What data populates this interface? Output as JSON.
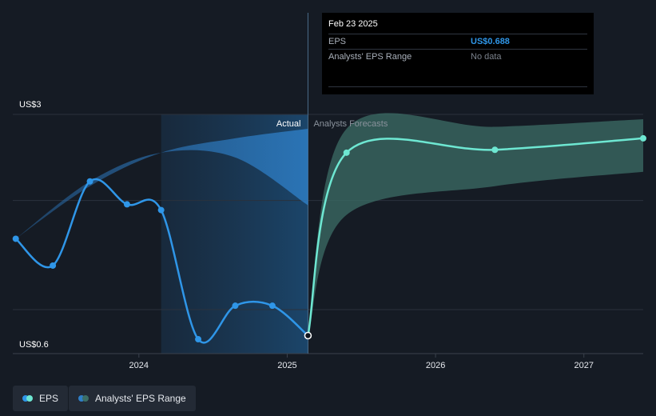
{
  "chart_data": {
    "type": "line",
    "y_axis": {
      "top_label": "US$3",
      "bottom_label": "US$0.6",
      "ylim": [
        0.6,
        3.0
      ]
    },
    "x_axis": {
      "ticks": [
        "2024",
        "2025",
        "2026",
        "2027"
      ],
      "xlim": [
        2023.15,
        2027.4
      ]
    },
    "series": [
      {
        "name": "EPS",
        "kind": "actual",
        "color": "#2f96e8",
        "points": [
          {
            "x": 2023.17,
            "y": 1.7
          },
          {
            "x": 2023.42,
            "y": 1.42
          },
          {
            "x": 2023.67,
            "y": 2.3
          },
          {
            "x": 2023.92,
            "y": 2.06
          },
          {
            "x": 2024.15,
            "y": 2.0
          },
          {
            "x": 2024.4,
            "y": 0.65
          },
          {
            "x": 2024.65,
            "y": 1.0
          },
          {
            "x": 2024.9,
            "y": 1.0
          },
          {
            "x": 2025.14,
            "y": 0.688
          }
        ]
      },
      {
        "name": "EPS",
        "kind": "forecast",
        "color": "#6ee7d2",
        "points": [
          {
            "x": 2025.14,
            "y": 0.688
          },
          {
            "x": 2025.4,
            "y": 2.6
          },
          {
            "x": 2026.4,
            "y": 2.63
          },
          {
            "x": 2027.4,
            "y": 2.75
          }
        ]
      }
    ],
    "ranges": [
      {
        "name": "Analysts' EPS Range",
        "kind": "past",
        "color": "#2f7fc8",
        "upper": [
          [
            2023.17,
            1.7
          ],
          [
            2023.67,
            2.25
          ],
          [
            2024.15,
            2.6
          ],
          [
            2024.65,
            2.75
          ],
          [
            2025.14,
            2.85
          ]
        ],
        "lower": [
          [
            2023.17,
            1.7
          ],
          [
            2023.67,
            2.3
          ],
          [
            2024.15,
            2.6
          ],
          [
            2024.65,
            2.55
          ],
          [
            2025.14,
            2.05
          ]
        ]
      },
      {
        "name": "Analysts' EPS Range",
        "kind": "forecast",
        "color": "#3c6e66",
        "upper": [
          [
            2025.14,
            0.688
          ],
          [
            2025.4,
            2.85
          ],
          [
            2026.4,
            2.87
          ],
          [
            2027.4,
            2.95
          ]
        ],
        "lower": [
          [
            2025.14,
            0.688
          ],
          [
            2025.4,
            1.95
          ],
          [
            2026.4,
            2.25
          ],
          [
            2027.4,
            2.4
          ]
        ]
      }
    ],
    "divider_x": 2025.14,
    "highlight_start_x": 2024.15,
    "actual_label": "Actual",
    "forecast_label": "Analysts Forecasts"
  },
  "tooltip": {
    "date": "Feb 23 2025",
    "rows": [
      {
        "label": "EPS",
        "value": "US$0.688"
      },
      {
        "label": "Analysts' EPS Range",
        "value": "No data"
      }
    ]
  },
  "legend": [
    {
      "label": "EPS",
      "colors": [
        "#2f96e8",
        "#6ee7d2"
      ]
    },
    {
      "label": "Analysts' EPS Range",
      "colors": [
        "#2f7fc8",
        "#3c6e66"
      ]
    }
  ]
}
